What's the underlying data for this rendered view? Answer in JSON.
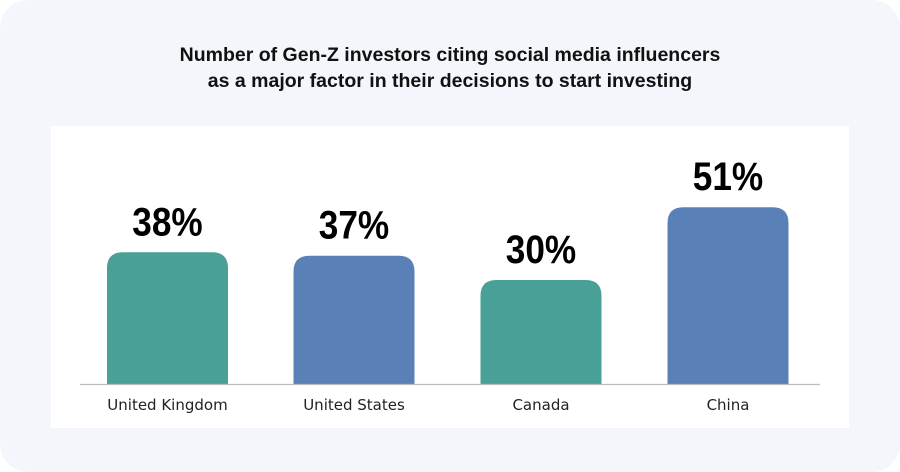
{
  "chart_data": {
    "type": "bar",
    "title_lines": [
      "Number of Gen-Z investors citing social media influencers",
      "as a major factor in their decisions to start investing"
    ],
    "categories": [
      "United Kingdom",
      "United States",
      "Canada",
      "China"
    ],
    "values": [
      38,
      37,
      30,
      51
    ],
    "value_labels": [
      "38%",
      "37%",
      "30%",
      "51%"
    ],
    "colors": [
      "#48a096",
      "#5a80b8",
      "#48a096",
      "#5a80b8"
    ],
    "grid": false,
    "legend": "none",
    "xlabel": "",
    "ylabel": ""
  }
}
